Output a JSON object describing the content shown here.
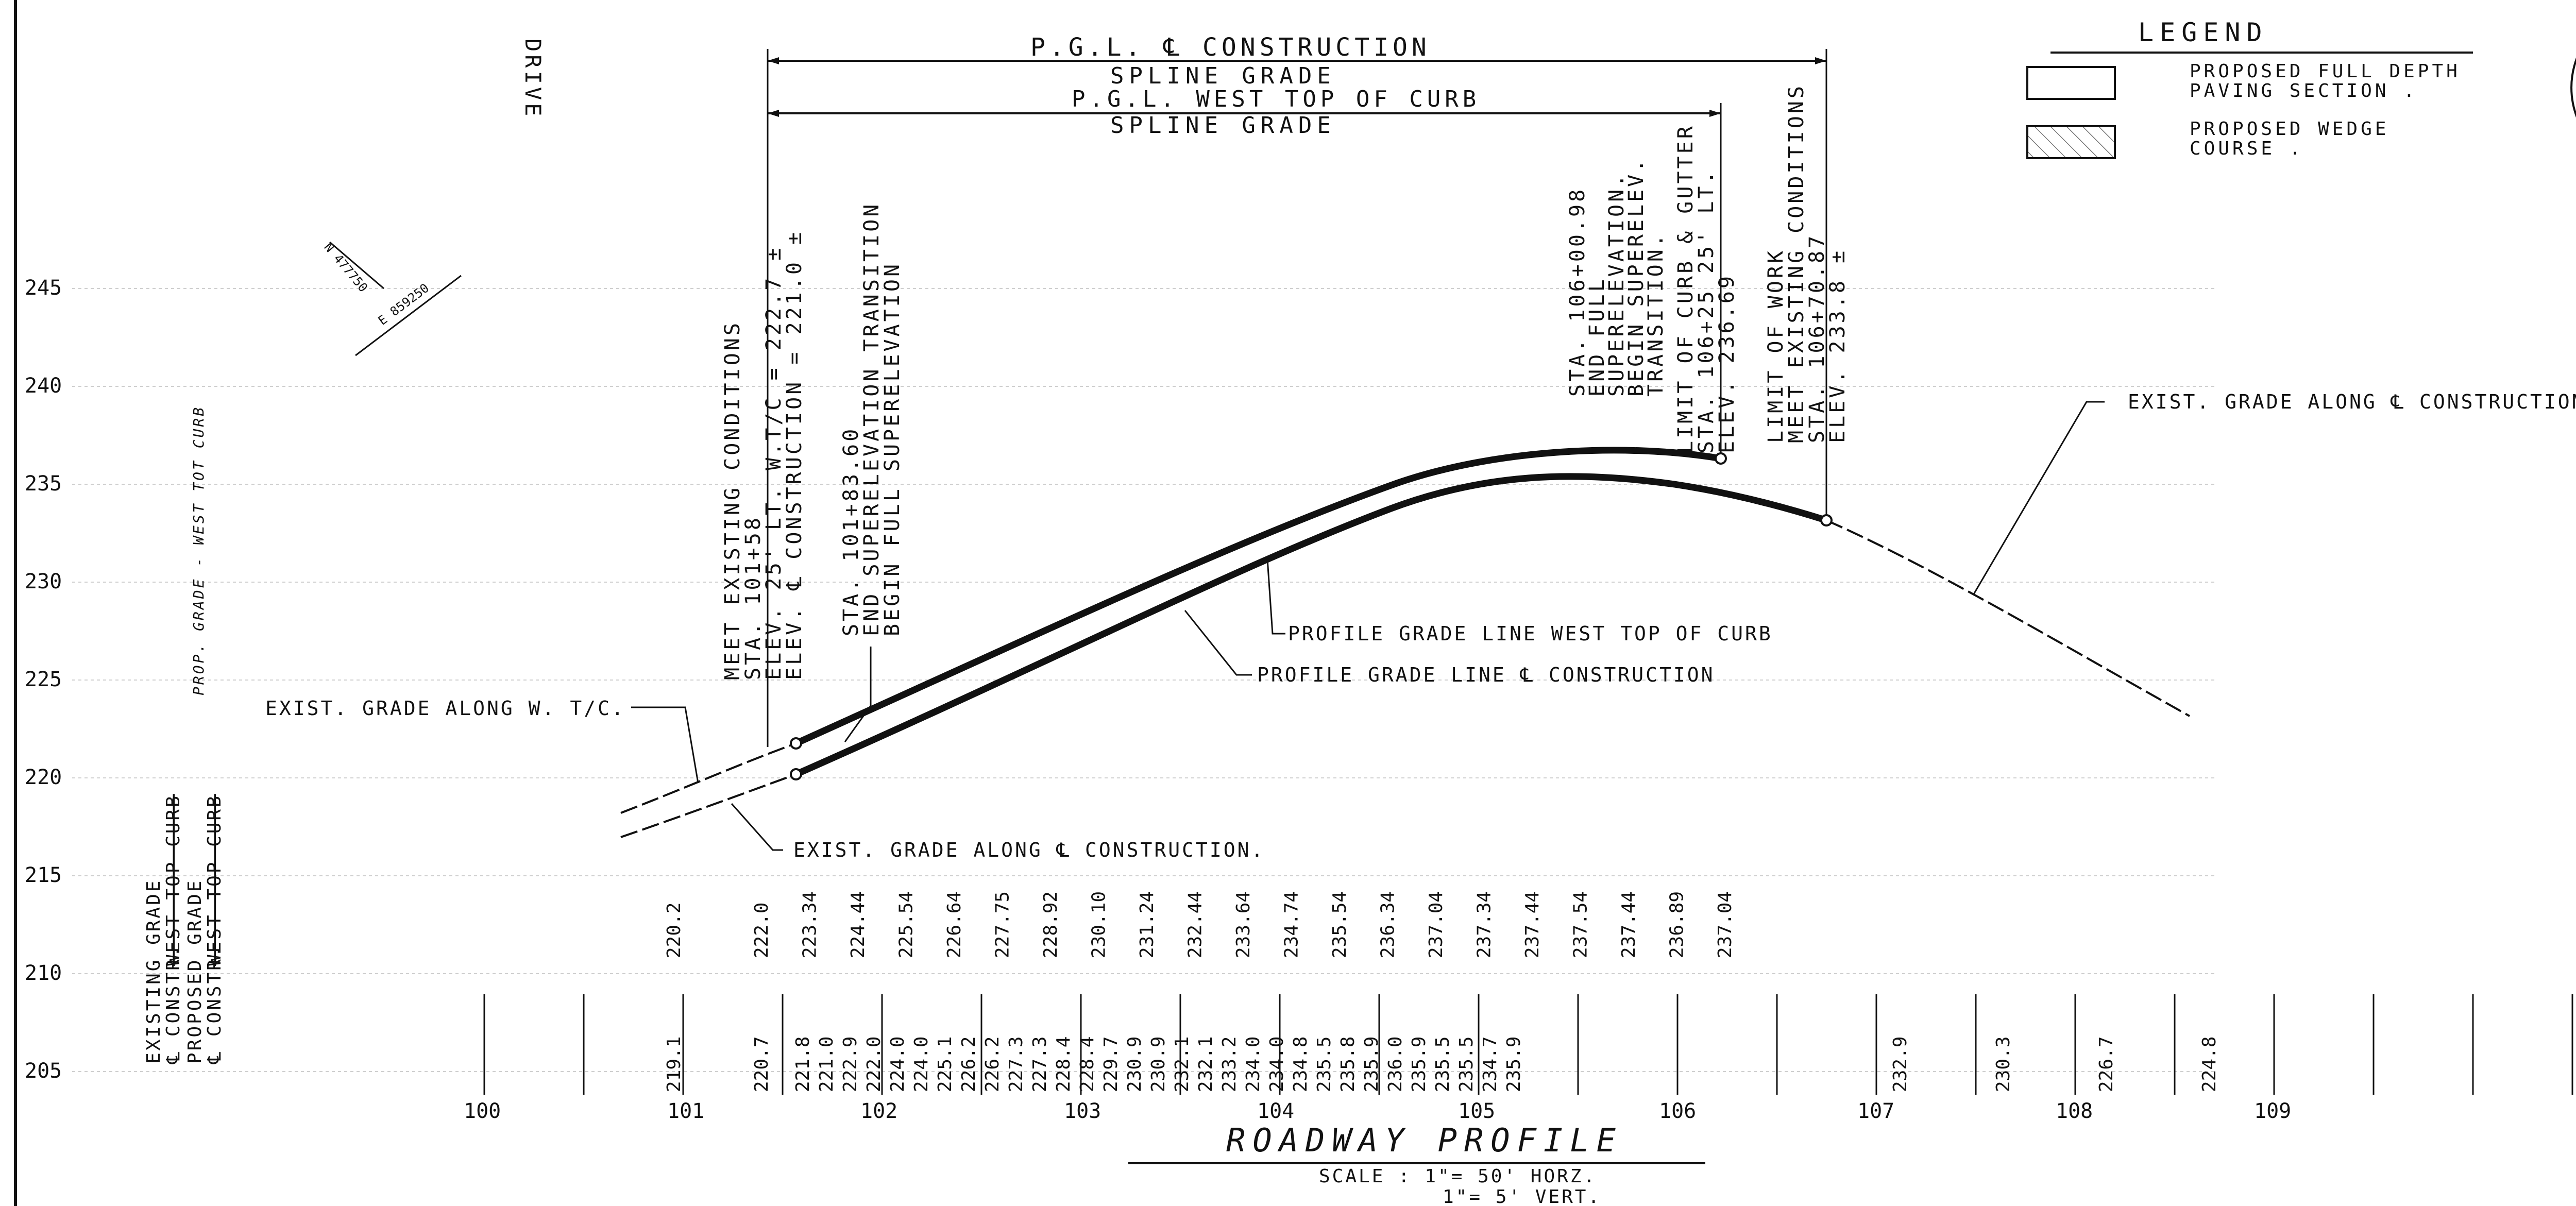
{
  "drawing": {
    "title": "ROADWAY PROFILE",
    "scale_line1": "SCALE : 1\"= 50' HORZ.",
    "scale_line2": "1\"= 5' VERT.",
    "drive_label": "DRIVE",
    "northing": "N 477750",
    "easting": "E 859250"
  },
  "header": {
    "pgl_construction": "P.G.L. ℄ CONSTRUCTION",
    "spline_grade_1": "SPLINE GRADE",
    "pgl_west_curb": "P.G.L. WEST TOP OF CURB",
    "spline_grade_2": "SPLINE GRADE"
  },
  "legend": {
    "title": "LEGEND",
    "items": [
      {
        "line1": "PROPOSED FULL DEPTH",
        "line2": "PAVING SECTION ."
      },
      {
        "line1": "PROPOSED WEDGE",
        "line2": "COURSE ."
      }
    ]
  },
  "elevation_axis": [
    "245",
    "240",
    "235",
    "230",
    "225",
    "220",
    "215",
    "210",
    "205"
  ],
  "station_axis": [
    "100",
    "101",
    "102",
    "103",
    "104",
    "105",
    "106",
    "107",
    "108",
    "109"
  ],
  "row_labels": {
    "existing_grade": "EXISTING GRADE",
    "existing_sub_a": "℄ CONSTR.",
    "existing_sub_b": "WEST TOP CURB",
    "proposed_grade": "PROPOSED GRADE",
    "proposed_sub_a": "℄ CONSTR.",
    "proposed_sub_b": "WEST TOP CURB",
    "prop_grade_west": "PROP. GRADE - WEST TOT CURB"
  },
  "annotations": {
    "a1": [
      "MEET EXISTING CONDITIONS",
      "STA. 101+58",
      "ELEV. 25' LT. W.T/C = 222.7 ±",
      "ELEV. ℄ CONSTRUCTION = 221.0 ±"
    ],
    "a2": [
      "STA. 101+83.60",
      "END SUPERELEVATION TRANSITION",
      "BEGIN FULL SUPERELEVATION"
    ],
    "a3": [
      "STA. 106+00.98",
      "END FULL",
      "SUPERELEVATION.",
      "BEGIN SUPERELEV.",
      "TRANSITION."
    ],
    "a4": [
      "LIMIT OF CURB & GUTTER",
      "STA. 106+25 25' LT.",
      "ELEV. 236.69"
    ],
    "a5": [
      "LIMIT OF WORK",
      "MEET EXISTING CONDITIONS",
      "STA. 106+70.87",
      "ELEV. 233.8 ±"
    ],
    "exist_grade_construction_right": "EXIST. GRADE ALONG ℄ CONSTRUCTION.",
    "exist_grade_wtc": "EXIST. GRADE ALONG W. T/C.",
    "exist_grade_construction_bottom": "EXIST. GRADE ALONG ℄ CONSTRUCTION.",
    "pgl_west_label": "PROFILE GRADE LINE WEST TOP OF CURB",
    "pgl_const_label": "PROFILE GRADE LINE ℄ CONSTRUCTION"
  },
  "upper_row_values": [
    "220.2",
    "222.0",
    "223.34",
    "224.44",
    "225.54",
    "226.64",
    "227.75",
    "228.92",
    "230.10",
    "231.24",
    "232.44",
    "233.64",
    "234.74",
    "235.54",
    "236.34",
    "237.04",
    "237.34",
    "237.44",
    "237.54",
    "237.44",
    "236.89",
    "237.04"
  ],
  "lower_row_values": [
    "219.1",
    "220.7",
    "221.8",
    "221.0",
    "222.9",
    "222.0",
    "224.0",
    "224.0",
    "225.1",
    "226.2",
    "226.2",
    "227.3",
    "227.3",
    "228.4",
    "228.4",
    "229.7",
    "230.9",
    "230.9",
    "232.1",
    "232.1",
    "233.2",
    "234.0",
    "234.0",
    "234.8",
    "235.5",
    "235.8",
    "235.9",
    "236.0",
    "235.9",
    "235.5",
    "235.5",
    "234.7",
    "235.9",
    "232.9",
    "230.3",
    "226.7",
    "224.8"
  ],
  "colors": {
    "ink": "#111111",
    "grid": "#cfcfcf",
    "paper": "#ffffff"
  }
}
